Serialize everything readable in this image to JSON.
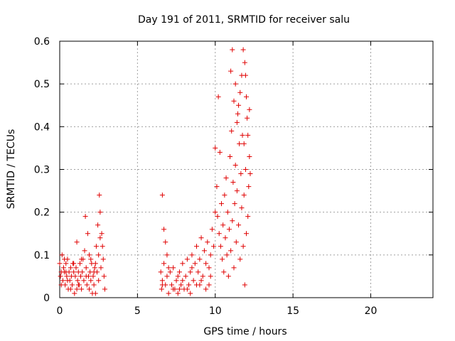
{
  "chart_data": {
    "type": "scatter",
    "title": "Day 191 of 2011, SRMTID for receiver salu",
    "xlabel": "GPS time / hours",
    "ylabel": "SRMTID / TECUs",
    "xlim": [
      0,
      24
    ],
    "ylim": [
      0,
      0.6
    ],
    "xticks": [
      0,
      5,
      10,
      15,
      20
    ],
    "yticks": [
      0,
      0.1,
      0.2,
      0.3,
      0.4,
      0.5,
      0.6
    ],
    "xtick_labels": [
      "0",
      "5",
      "10",
      "15",
      "20"
    ],
    "ytick_labels": [
      "0",
      "0.1",
      "0.2",
      "0.3",
      "0.4",
      "0.5",
      "0.6"
    ],
    "grid": true,
    "marker": "+",
    "color": "#e00000",
    "series": [
      {
        "name": "",
        "points": [
          [
            0.0,
            0.08
          ],
          [
            0.05,
            0.05
          ],
          [
            0.1,
            0.06
          ],
          [
            0.15,
            0.1
          ],
          [
            0.2,
            0.04
          ],
          [
            0.25,
            0.07
          ],
          [
            0.3,
            0.06
          ],
          [
            0.35,
            0.03
          ],
          [
            0.4,
            0.08
          ],
          [
            0.45,
            0.05
          ],
          [
            0.5,
            0.09
          ],
          [
            0.55,
            0.02
          ],
          [
            0.6,
            0.06
          ],
          [
            0.65,
            0.04
          ],
          [
            0.7,
            0.07
          ],
          [
            0.75,
            0.05
          ],
          [
            0.8,
            0.03
          ],
          [
            0.85,
            0.08
          ],
          [
            0.9,
            0.06
          ],
          [
            0.95,
            0.01
          ],
          [
            1.0,
            0.05
          ],
          [
            1.05,
            0.07
          ],
          [
            1.1,
            0.13
          ],
          [
            1.15,
            0.04
          ],
          [
            1.2,
            0.06
          ],
          [
            1.25,
            0.03
          ],
          [
            1.3,
            0.08
          ],
          [
            1.35,
            0.05
          ],
          [
            1.4,
            0.02
          ],
          [
            1.45,
            0.06
          ],
          [
            1.5,
            0.09
          ],
          [
            1.55,
            0.04
          ],
          [
            1.6,
            0.11
          ],
          [
            1.65,
            0.19
          ],
          [
            1.7,
            0.07
          ],
          [
            1.75,
            0.03
          ],
          [
            1.8,
            0.15
          ],
          [
            1.85,
            0.05
          ],
          [
            1.9,
            0.02
          ],
          [
            1.95,
            0.06
          ],
          [
            2.0,
            0.04
          ],
          [
            2.05,
            0.08
          ],
          [
            2.1,
            0.01
          ],
          [
            2.15,
            0.05
          ],
          [
            2.2,
            0.03
          ],
          [
            2.25,
            0.07
          ],
          [
            2.3,
            0.01
          ],
          [
            2.35,
            0.12
          ],
          [
            2.4,
            0.06
          ],
          [
            2.45,
            0.17
          ],
          [
            2.5,
            0.1
          ],
          [
            2.55,
            0.24
          ],
          [
            2.6,
            0.14
          ],
          [
            2.65,
            0.07
          ],
          [
            2.7,
            0.15
          ],
          [
            2.75,
            0.12
          ],
          [
            2.8,
            0.09
          ],
          [
            2.85,
            0.05
          ],
          [
            2.9,
            0.02
          ],
          [
            0.1,
            0.03
          ],
          [
            0.3,
            0.09
          ],
          [
            0.5,
            0.04
          ],
          [
            0.7,
            0.02
          ],
          [
            0.9,
            0.08
          ],
          [
            1.2,
            0.03
          ],
          [
            1.4,
            0.09
          ],
          [
            1.7,
            0.05
          ],
          [
            2.0,
            0.09
          ],
          [
            2.2,
            0.06
          ],
          [
            2.6,
            0.2
          ],
          [
            2.5,
            0.04
          ],
          [
            2.3,
            0.08
          ],
          [
            1.9,
            0.1
          ],
          [
            1.1,
            0.02
          ],
          [
            0.4,
            0.06
          ],
          [
            6.6,
            0.24
          ],
          [
            6.7,
            0.16
          ],
          [
            6.8,
            0.13
          ],
          [
            6.5,
            0.06
          ],
          [
            6.55,
            0.02
          ],
          [
            6.6,
            0.04
          ],
          [
            6.7,
            0.08
          ],
          [
            6.8,
            0.03
          ],
          [
            6.9,
            0.05
          ],
          [
            7.0,
            0.01
          ],
          [
            7.1,
            0.06
          ],
          [
            7.2,
            0.03
          ],
          [
            7.3,
            0.07
          ],
          [
            7.4,
            0.02
          ],
          [
            7.5,
            0.04
          ],
          [
            7.6,
            0.01
          ],
          [
            7.7,
            0.06
          ],
          [
            7.8,
            0.03
          ],
          [
            7.9,
            0.08
          ],
          [
            8.0,
            0.02
          ],
          [
            8.1,
            0.05
          ],
          [
            8.2,
            0.09
          ],
          [
            8.3,
            0.03
          ],
          [
            8.4,
            0.06
          ],
          [
            8.5,
            0.1
          ],
          [
            8.6,
            0.04
          ],
          [
            8.7,
            0.08
          ],
          [
            8.8,
            0.12
          ],
          [
            8.9,
            0.06
          ],
          [
            9.0,
            0.09
          ],
          [
            9.1,
            0.14
          ],
          [
            9.2,
            0.05
          ],
          [
            9.3,
            0.11
          ],
          [
            9.4,
            0.08
          ],
          [
            9.5,
            0.13
          ],
          [
            9.6,
            0.07
          ],
          [
            9.7,
            0.1
          ],
          [
            9.8,
            0.16
          ],
          [
            9.9,
            0.12
          ],
          [
            10.0,
            0.2
          ],
          [
            6.9,
            0.1
          ],
          [
            7.3,
            0.02
          ],
          [
            7.6,
            0.05
          ],
          [
            7.9,
            0.04
          ],
          [
            8.2,
            0.02
          ],
          [
            8.5,
            0.07
          ],
          [
            8.8,
            0.03
          ],
          [
            9.1,
            0.04
          ],
          [
            9.4,
            0.02
          ],
          [
            9.7,
            0.05
          ],
          [
            6.6,
            0.03
          ],
          [
            7.0,
            0.07
          ],
          [
            7.7,
            0.02
          ],
          [
            8.4,
            0.01
          ],
          [
            9.0,
            0.03
          ],
          [
            9.6,
            0.03
          ],
          [
            10.0,
            0.35
          ],
          [
            10.1,
            0.26
          ],
          [
            10.15,
            0.19
          ],
          [
            10.2,
            0.47
          ],
          [
            10.25,
            0.15
          ],
          [
            10.3,
            0.34
          ],
          [
            10.35,
            0.12
          ],
          [
            10.4,
            0.22
          ],
          [
            10.45,
            0.09
          ],
          [
            10.5,
            0.17
          ],
          [
            10.55,
            0.06
          ],
          [
            10.6,
            0.24
          ],
          [
            10.65,
            0.14
          ],
          [
            10.7,
            0.28
          ],
          [
            10.75,
            0.1
          ],
          [
            10.8,
            0.2
          ],
          [
            10.85,
            0.05
          ],
          [
            10.9,
            0.16
          ],
          [
            10.95,
            0.33
          ],
          [
            11.0,
            0.11
          ],
          [
            11.05,
            0.39
          ],
          [
            11.1,
            0.18
          ],
          [
            11.15,
            0.27
          ],
          [
            11.2,
            0.07
          ],
          [
            11.25,
            0.22
          ],
          [
            11.3,
            0.31
          ],
          [
            11.35,
            0.13
          ],
          [
            11.4,
            0.25
          ],
          [
            11.45,
            0.43
          ],
          [
            11.5,
            0.17
          ],
          [
            11.55,
            0.36
          ],
          [
            11.6,
            0.09
          ],
          [
            11.65,
            0.29
          ],
          [
            11.7,
            0.21
          ],
          [
            11.75,
            0.38
          ],
          [
            11.8,
            0.12
          ],
          [
            11.85,
            0.24
          ],
          [
            11.9,
            0.03
          ],
          [
            11.95,
            0.3
          ],
          [
            12.0,
            0.15
          ],
          [
            12.05,
            0.42
          ],
          [
            12.1,
            0.19
          ],
          [
            12.15,
            0.26
          ],
          [
            12.2,
            0.33
          ],
          [
            11.0,
            0.53
          ],
          [
            11.1,
            0.58
          ],
          [
            11.2,
            0.46
          ],
          [
            11.3,
            0.5
          ],
          [
            11.4,
            0.41
          ],
          [
            11.5,
            0.45
          ],
          [
            11.6,
            0.48
          ],
          [
            11.7,
            0.52
          ],
          [
            11.8,
            0.58
          ],
          [
            11.9,
            0.55
          ],
          [
            12.0,
            0.47
          ],
          [
            11.95,
            0.52
          ],
          [
            11.85,
            0.36
          ],
          [
            12.1,
            0.38
          ],
          [
            12.2,
            0.44
          ],
          [
            12.25,
            0.29
          ]
        ]
      }
    ]
  }
}
